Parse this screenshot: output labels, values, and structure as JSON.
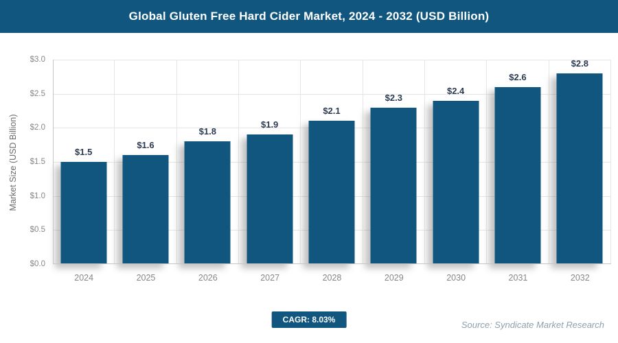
{
  "header": {
    "title": "Global Gluten Free Hard Cider Market, 2024 - 2032 (USD Billion)",
    "bg_color": "#11567F",
    "text_color": "#FFFFFF"
  },
  "chart_data": {
    "type": "bar",
    "title": "Global Gluten Free Hard Cider Market, 2024 - 2032 (USD Billion)",
    "categories": [
      "2024",
      "2025",
      "2026",
      "2027",
      "2028",
      "2029",
      "2030",
      "2031",
      "2032"
    ],
    "values": [
      1.5,
      1.6,
      1.8,
      1.9,
      2.1,
      2.3,
      2.4,
      2.6,
      2.8
    ],
    "bar_labels": [
      "$1.5",
      "$1.6",
      "$1.8",
      "$1.9",
      "$2.1",
      "$2.3",
      "$2.4",
      "$2.6",
      "$2.8"
    ],
    "xlabel": "",
    "ylabel": "Market Size (USD Billion)",
    "ylim": [
      0,
      3.0
    ],
    "yticks": [
      {
        "value": 3.0,
        "label": "$3.0"
      },
      {
        "value": 2.5,
        "label": "$2.5"
      },
      {
        "value": 2.0,
        "label": "$2.0"
      },
      {
        "value": 1.5,
        "label": "$1.5"
      },
      {
        "value": 1.0,
        "label": "$1.0"
      },
      {
        "value": 0.5,
        "label": "$0.5"
      },
      {
        "value": 0.0,
        "label": "$0.0"
      }
    ],
    "grid": true,
    "legend": false,
    "bar_color": "#11567F",
    "label_color": "#2B3A52"
  },
  "footer": {
    "cagr_label": "CAGR: 8.03%",
    "source": "Source: Syndicate Market Research"
  }
}
